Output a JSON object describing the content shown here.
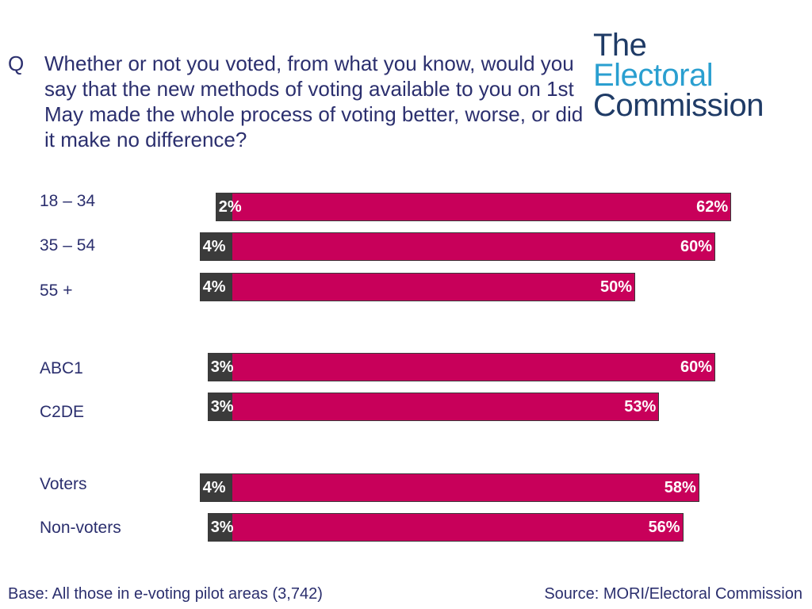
{
  "question": {
    "letter": "Q",
    "text": "Whether or not you voted, from what you know, would you say that the new methods of voting available to you on 1st May made the whole process of voting better, worse, or did it make no difference?"
  },
  "logo": {
    "line1": "The",
    "line2": "Electoral",
    "line3": "Commission"
  },
  "footer": {
    "base": "Base: All those in e-voting pilot areas (3,742)",
    "source": "Source: MORI/Electoral Commission"
  },
  "colors": {
    "dark": "#3b3b3b",
    "accent": "#c8005a",
    "text": "#2b2f6e"
  },
  "chart_data": {
    "type": "bar",
    "orientation": "horizontal",
    "stacked": true,
    "categories": [
      "18 – 34",
      "35 – 54",
      "55 +",
      "ABC1",
      "C2DE",
      "Voters",
      "Non-voters"
    ],
    "groups": [
      [
        "18 – 34",
        "35 – 54",
        "55 +"
      ],
      [
        "ABC1",
        "C2DE"
      ],
      [
        "Voters",
        "Non-voters"
      ]
    ],
    "series": [
      {
        "values": [
          2,
          4,
          4,
          3,
          3,
          4,
          3
        ],
        "labels": [
          "2%",
          "4%",
          "4%",
          "3%",
          "3%",
          "4%",
          "3%"
        ],
        "color": "#3b3b3b"
      },
      {
        "values": [
          62,
          60,
          50,
          60,
          53,
          58,
          56
        ],
        "labels": [
          "62%",
          "60%",
          "50%",
          "60%",
          "53%",
          "58%",
          "56%"
        ],
        "color": "#c8005a"
      }
    ],
    "title": "",
    "xlabel": "",
    "ylabel": ""
  }
}
